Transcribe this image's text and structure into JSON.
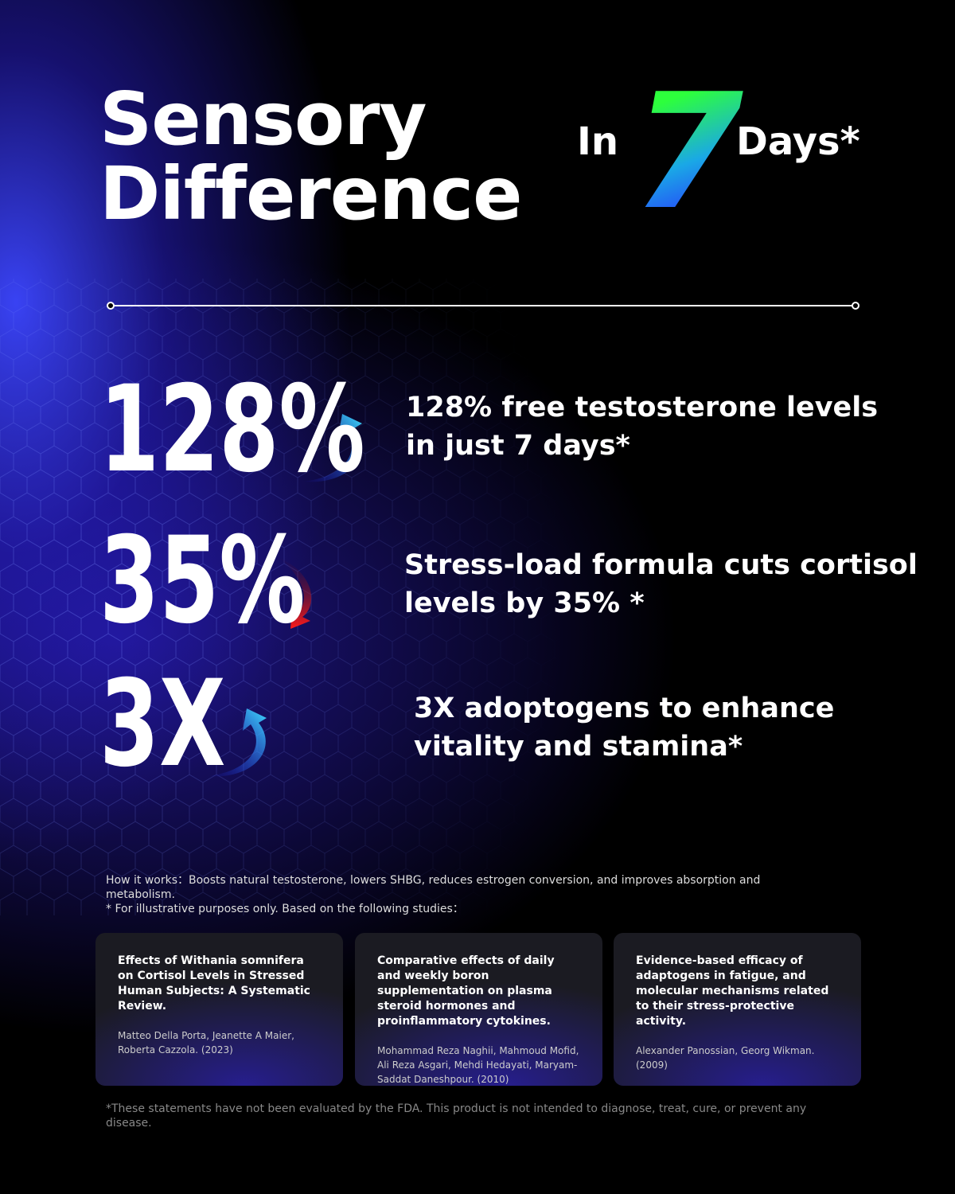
{
  "header": {
    "title_lines": [
      "Sensory",
      "Difference"
    ],
    "prefix": "In",
    "number": "7",
    "suffix": "Days*"
  },
  "stats": [
    {
      "figure": "128%",
      "arrow": "up",
      "lines": [
        "128% free testosterone levels",
        "in just 7 days*"
      ]
    },
    {
      "figure": "35%",
      "arrow": "down",
      "lines": [
        "Stress-load formula cuts cortisol",
        "levels by 35% *"
      ]
    },
    {
      "figure": "3X",
      "arrow": "up",
      "lines": [
        "3X adoptogens to enhance",
        "vitality and stamina*"
      ]
    }
  ],
  "notes": [
    "How it works：Boosts natural testosterone, lowers SHBG, reduces estrogen conversion, and improves absorption and metabolism.",
    "* For illustrative purposes only. Based on the following studies："
  ],
  "studies": [
    {
      "title": "Effects of Withania somnifera on Cortisol Levels in Stressed Human Subjects: A Systematic Review.",
      "authors": "Matteo Della Porta, Jeanette A Maier, Roberta Cazzola. (2023)"
    },
    {
      "title": "Comparative effects of daily and weekly boron supplementation on plasma steroid hormones and proinflammatory cytokines.",
      "authors": "Mohammad Reza Naghii, Mahmoud Mofid, Ali Reza Asgari, Mehdi Hedayati, Maryam-Saddat Daneshpour. (2010)"
    },
    {
      "title": "Evidence-based efficacy of adaptogens in fatigue, and molecular mechanisms related to their stress-protective activity.",
      "authors": "Alexander Panossian, Georg Wikman. (2009)"
    }
  ],
  "disclaimer": "*These statements have not been evaluated by the FDA. This product is not intended to diagnose, treat, cure, or prevent any disease."
}
